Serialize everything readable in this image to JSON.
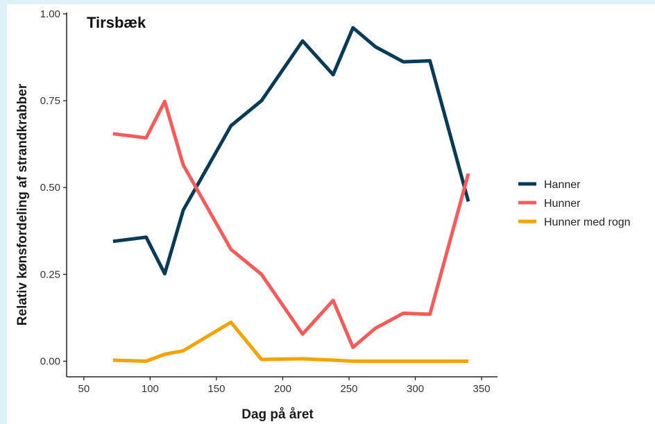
{
  "chart_data": {
    "type": "line",
    "title": "Tirsbæk",
    "xlabel": "Dag på året",
    "ylabel": "Relativ kønsfordeling af strandkrabber",
    "xlim": [
      37,
      362
    ],
    "ylim": [
      -0.045,
      1.0
    ],
    "xticks": [
      50,
      100,
      150,
      200,
      250,
      300,
      350
    ],
    "xtick_labels": [
      "50",
      "100",
      "150",
      "200",
      "250",
      "300",
      "350"
    ],
    "yticks": [
      0,
      0.25,
      0.5,
      0.75,
      1.0
    ],
    "ytick_labels": [
      "0.00",
      "0.25",
      "0.50",
      "0.75",
      "1.00"
    ],
    "grid": false,
    "legend_position": "right",
    "series": [
      {
        "name": "Hanner",
        "color": "#073b57",
        "x": [
          72,
          97,
          111,
          125,
          161,
          184,
          215,
          238,
          253,
          270,
          291,
          311,
          340
        ],
        "y": [
          0.345,
          0.357,
          0.252,
          0.435,
          0.678,
          0.75,
          0.922,
          0.825,
          0.96,
          0.905,
          0.862,
          0.865,
          0.46
        ]
      },
      {
        "name": "Hunner",
        "color": "#fb5a5a",
        "x": [
          72,
          97,
          111,
          125,
          161,
          184,
          215,
          238,
          253,
          270,
          291,
          311,
          340
        ],
        "y": [
          0.655,
          0.643,
          0.748,
          0.565,
          0.322,
          0.25,
          0.078,
          0.175,
          0.04,
          0.095,
          0.138,
          0.135,
          0.54
        ]
      },
      {
        "name": "Hunner med rogn",
        "color": "#f5a300",
        "x": [
          72,
          97,
          111,
          125,
          161,
          184,
          215,
          238,
          253,
          270,
          291,
          311,
          340
        ],
        "y": [
          0.003,
          0.0,
          0.02,
          0.03,
          0.112,
          0.005,
          0.007,
          0.003,
          0.0,
          0.0,
          0.0,
          0.0,
          0.0
        ]
      }
    ]
  }
}
